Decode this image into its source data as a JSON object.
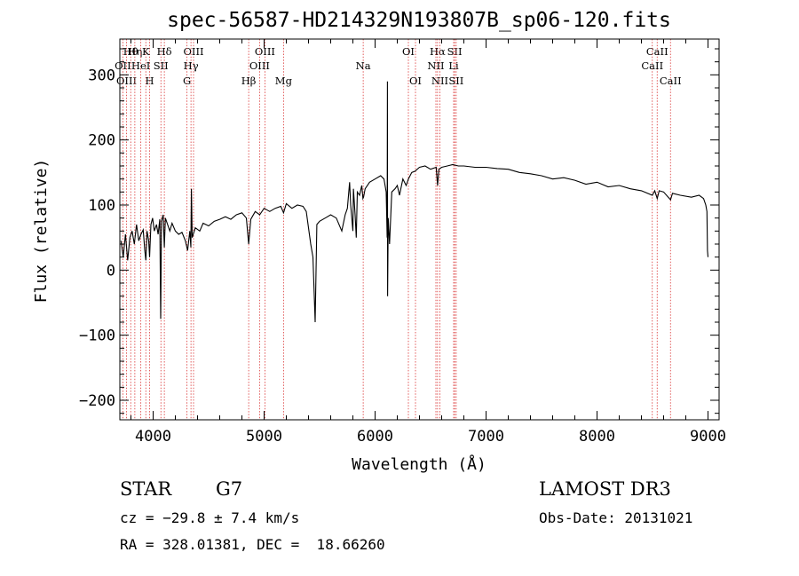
{
  "chart_data": {
    "type": "line",
    "title": "spec-56587-HD214329N193807B_sp06-120.fits",
    "xlabel": "Wavelength (Å)",
    "ylabel": "Flux (relative)",
    "xlim": [
      3700,
      9100
    ],
    "ylim": [
      -230,
      355
    ],
    "x_ticks": [
      4000,
      5000,
      6000,
      7000,
      8000,
      9000
    ],
    "x_tick_labels": [
      "4000",
      "5000",
      "6000",
      "7000",
      "8000",
      "9000"
    ],
    "y_ticks": [
      -200,
      -100,
      0,
      100,
      200,
      300
    ],
    "y_tick_labels": [
      "−200",
      "−100",
      "0",
      "100",
      "200",
      "300"
    ],
    "grid": false,
    "series": [
      {
        "style": "solid-black",
        "points": [
          [
            3710,
            45
          ],
          [
            3730,
            20
          ],
          [
            3750,
            55
          ],
          [
            3770,
            15
          ],
          [
            3790,
            50
          ],
          [
            3810,
            60
          ],
          [
            3830,
            40
          ],
          [
            3850,
            70
          ],
          [
            3870,
            45
          ],
          [
            3890,
            55
          ],
          [
            3910,
            62
          ],
          [
            3925,
            30
          ],
          [
            3934,
            15
          ],
          [
            3945,
            60
          ],
          [
            3960,
            45
          ],
          [
            3968,
            20
          ],
          [
            3980,
            70
          ],
          [
            3995,
            80
          ],
          [
            4010,
            60
          ],
          [
            4030,
            70
          ],
          [
            4045,
            55
          ],
          [
            4060,
            78
          ],
          [
            4068,
            -75
          ],
          [
            4075,
            75
          ],
          [
            4090,
            85
          ],
          [
            4101,
            35
          ],
          [
            4110,
            80
          ],
          [
            4130,
            70
          ],
          [
            4150,
            60
          ],
          [
            4170,
            72
          ],
          [
            4200,
            60
          ],
          [
            4230,
            55
          ],
          [
            4260,
            58
          ],
          [
            4290,
            45
          ],
          [
            4310,
            30
          ],
          [
            4330,
            60
          ],
          [
            4340,
            35
          ],
          [
            4345,
            125
          ],
          [
            4352,
            50
          ],
          [
            4380,
            65
          ],
          [
            4420,
            60
          ],
          [
            4450,
            72
          ],
          [
            4500,
            68
          ],
          [
            4550,
            75
          ],
          [
            4600,
            78
          ],
          [
            4650,
            82
          ],
          [
            4700,
            78
          ],
          [
            4750,
            85
          ],
          [
            4800,
            88
          ],
          [
            4840,
            80
          ],
          [
            4861,
            40
          ],
          [
            4880,
            78
          ],
          [
            4920,
            90
          ],
          [
            4960,
            85
          ],
          [
            5000,
            95
          ],
          [
            5050,
            90
          ],
          [
            5100,
            95
          ],
          [
            5150,
            98
          ],
          [
            5175,
            88
          ],
          [
            5200,
            102
          ],
          [
            5250,
            95
          ],
          [
            5300,
            100
          ],
          [
            5350,
            98
          ],
          [
            5380,
            90
          ],
          [
            5420,
            40
          ],
          [
            5440,
            20
          ],
          [
            5460,
            -80
          ],
          [
            5475,
            70
          ],
          [
            5500,
            75
          ],
          [
            5550,
            80
          ],
          [
            5600,
            85
          ],
          [
            5650,
            80
          ],
          [
            5700,
            60
          ],
          [
            5730,
            85
          ],
          [
            5750,
            95
          ],
          [
            5770,
            135
          ],
          [
            5780,
            100
          ],
          [
            5800,
            60
          ],
          [
            5805,
            125
          ],
          [
            5820,
            85
          ],
          [
            5830,
            50
          ],
          [
            5840,
            120
          ],
          [
            5860,
            115
          ],
          [
            5880,
            130
          ],
          [
            5890,
            110
          ],
          [
            5896,
            112
          ],
          [
            5910,
            125
          ],
          [
            5950,
            135
          ],
          [
            6000,
            140
          ],
          [
            6050,
            145
          ],
          [
            6080,
            140
          ],
          [
            6100,
            120
          ],
          [
            6109,
            50
          ],
          [
            6111,
            290
          ],
          [
            6113,
            -40
          ],
          [
            6118,
            80
          ],
          [
            6130,
            40
          ],
          [
            6150,
            120
          ],
          [
            6180,
            125
          ],
          [
            6200,
            130
          ],
          [
            6220,
            115
          ],
          [
            6250,
            140
          ],
          [
            6280,
            130
          ],
          [
            6300,
            140
          ],
          [
            6330,
            150
          ],
          [
            6360,
            152
          ],
          [
            6400,
            158
          ],
          [
            6450,
            160
          ],
          [
            6500,
            155
          ],
          [
            6550,
            158
          ],
          [
            6563,
            130
          ],
          [
            6575,
            155
          ],
          [
            6600,
            158
          ],
          [
            6650,
            160
          ],
          [
            6700,
            162
          ],
          [
            6750,
            160
          ],
          [
            6800,
            160
          ],
          [
            6900,
            158
          ],
          [
            7000,
            158
          ],
          [
            7100,
            156
          ],
          [
            7200,
            155
          ],
          [
            7300,
            150
          ],
          [
            7400,
            148
          ],
          [
            7500,
            145
          ],
          [
            7600,
            140
          ],
          [
            7700,
            142
          ],
          [
            7800,
            138
          ],
          [
            7900,
            132
          ],
          [
            8000,
            135
          ],
          [
            8100,
            128
          ],
          [
            8200,
            130
          ],
          [
            8300,
            125
          ],
          [
            8400,
            122
          ],
          [
            8498,
            115
          ],
          [
            8520,
            122
          ],
          [
            8542,
            110
          ],
          [
            8560,
            122
          ],
          [
            8600,
            120
          ],
          [
            8662,
            108
          ],
          [
            8680,
            118
          ],
          [
            8750,
            115
          ],
          [
            8850,
            112
          ],
          [
            8920,
            115
          ],
          [
            8960,
            110
          ],
          [
            8980,
            100
          ],
          [
            8990,
            90
          ],
          [
            8995,
            30
          ],
          [
            9000,
            20
          ]
        ]
      }
    ],
    "annotations": {
      "style": "red dotted vertical lines",
      "lines": [
        {
          "label": "Hθ",
          "x": 3798,
          "row": 1
        },
        {
          "label": "OII",
          "x": 3727,
          "row": 2
        },
        {
          "label": "OIII",
          "x": 3760,
          "row": 3
        },
        {
          "label": "Hη",
          "x": 3835,
          "row": 1
        },
        {
          "label": "HeI",
          "x": 3889,
          "row": 2
        },
        {
          "label": "H",
          "x": 3968,
          "row": 3
        },
        {
          "label": "K",
          "x": 3934,
          "row": 1
        },
        {
          "label": "SII",
          "x": 4070,
          "row": 2
        },
        {
          "label": "Hδ",
          "x": 4101,
          "row": 1
        },
        {
          "label": "OIII",
          "x": 4364,
          "row": 1
        },
        {
          "label": "Hγ",
          "x": 4341,
          "row": 2
        },
        {
          "label": "G",
          "x": 4305,
          "row": 3
        },
        {
          "label": "OIII",
          "x": 5007,
          "row": 1
        },
        {
          "label": "OIII",
          "x": 4959,
          "row": 2
        },
        {
          "label": "Hβ",
          "x": 4861,
          "row": 3
        },
        {
          "label": "Mg",
          "x": 5175,
          "row": 3
        },
        {
          "label": "Na",
          "x": 5893,
          "row": 2
        },
        {
          "label": "OI",
          "x": 6300,
          "row": 1
        },
        {
          "label": "OI",
          "x": 6364,
          "row": 3
        },
        {
          "label": "Hα",
          "x": 6563,
          "row": 1
        },
        {
          "label": "SII",
          "x": 6717,
          "row": 1
        },
        {
          "label": "NII",
          "x": 6548,
          "row": 2
        },
        {
          "label": "Li",
          "x": 6708,
          "row": 2
        },
        {
          "label": "NII",
          "x": 6584,
          "row": 3
        },
        {
          "label": "SII",
          "x": 6731,
          "row": 3
        },
        {
          "label": "CaII",
          "x": 8542,
          "row": 1
        },
        {
          "label": "CaII",
          "x": 8498,
          "row": 2
        },
        {
          "label": "CaII",
          "x": 8662,
          "row": 3
        }
      ]
    }
  },
  "info": {
    "object_class": "STAR",
    "subclass": "G7",
    "redshift": "cz = −29.8 ± 7.4 km/s",
    "coords": "RA = 328.01381, DEC =  18.66260",
    "survey": "LAMOST DR3",
    "obs_date": "Obs-Date: 20131021"
  }
}
